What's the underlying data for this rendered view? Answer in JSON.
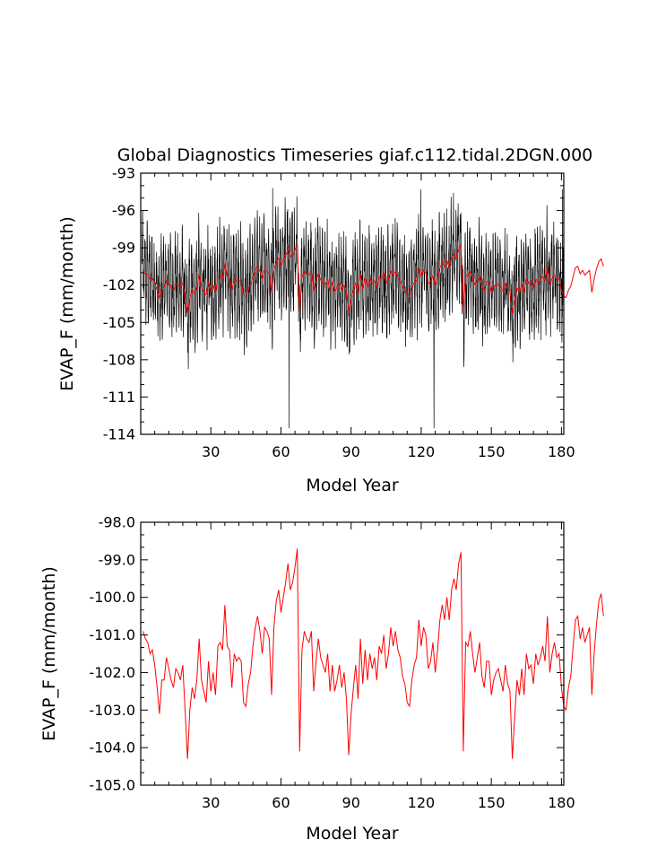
{
  "chart_data": [
    {
      "type": "line",
      "title": "Global Diagnostics Timeseries giaf.c112.tidal.2DGN.000",
      "xlabel": "Model Year",
      "ylabel": "EVAP_F (mm/month)",
      "xlim": [
        0,
        181
      ],
      "ylim": [
        -114,
        -93
      ],
      "xticks": [
        30,
        60,
        90,
        120,
        150,
        180
      ],
      "xtick_labels": [
        "30",
        "60",
        "90",
        "120",
        "150",
        "180"
      ],
      "yticks": [
        -93,
        -96,
        -99,
        -102,
        -105,
        -108,
        -111,
        -114
      ],
      "ytick_labels": [
        "-93",
        "-96",
        "-99",
        "-102",
        "-105",
        "-108",
        "-111",
        "-114"
      ],
      "grid": false,
      "colors": {
        "monthly": "#000000",
        "annual": "#ff0000"
      },
      "series": [
        {
          "id": "monthly",
          "resolution": "monthly",
          "amplitude": 3.8,
          "spikes": [
            {
              "x": 63.5,
              "y": -113.5
            },
            {
              "x": 125.5,
              "y": -113.5
            },
            {
              "x": 180.5,
              "y": -94.3
            },
            {
              "x": 56.5,
              "y": -94.2
            },
            {
              "x": 119.8,
              "y": -94.3
            }
          ]
        },
        {
          "id": "annual",
          "resolution": "annual"
        }
      ]
    },
    {
      "type": "line",
      "xlabel": "Model Year",
      "ylabel": "EVAP_F (mm/month)",
      "xlim": [
        0,
        181
      ],
      "ylim": [
        -105.0,
        -98.0
      ],
      "xticks": [
        30,
        60,
        90,
        120,
        150,
        180
      ],
      "xtick_labels": [
        "30",
        "60",
        "90",
        "120",
        "150",
        "180"
      ],
      "yticks": [
        -98.0,
        -99.0,
        -100.0,
        -101.0,
        -102.0,
        -103.0,
        -104.0,
        -105.0
      ],
      "ytick_labels": [
        "-98.0",
        "-99.0",
        "-100.0",
        "-101.0",
        "-102.0",
        "-103.0",
        "-104.0",
        "-105.0"
      ],
      "grid": false,
      "colors": {
        "line": "#ff0000"
      },
      "series": [
        {
          "id": "annual",
          "x_start": 1,
          "x_step": 1,
          "values": [
            -100.9,
            -101.1,
            -101.2,
            -101.5,
            -101.4,
            -101.8,
            -102.4,
            -103.1,
            -102.2,
            -102.2,
            -101.6,
            -101.9,
            -102.2,
            -102.4,
            -101.9,
            -102.0,
            -102.2,
            -101.8,
            -103.0,
            -104.3,
            -103.0,
            -102.4,
            -102.7,
            -102.2,
            -101.1,
            -102.2,
            -102.5,
            -102.8,
            -101.7,
            -102.5,
            -102.0,
            -102.6,
            -101.3,
            -101.2,
            -101.4,
            -100.2,
            -101.3,
            -101.4,
            -102.4,
            -101.5,
            -101.7,
            -101.6,
            -101.7,
            -102.8,
            -102.9,
            -102.3,
            -102.0,
            -101.3,
            -100.8,
            -100.5,
            -100.9,
            -101.5,
            -100.8,
            -100.9,
            -101.1,
            -102.6,
            -100.8,
            -100.1,
            -99.8,
            -100.4,
            -100.0,
            -99.6,
            -99.1,
            -99.8,
            -99.6,
            -99.2,
            -98.7,
            -104.1,
            -101.4,
            -100.9,
            -101.1,
            -101.2,
            -100.9,
            -102.5,
            -101.7,
            -101.1,
            -101.6,
            -101.8,
            -102.0,
            -101.5,
            -102.5,
            -101.8,
            -102.5,
            -102.2,
            -101.8,
            -102.4,
            -102.0,
            -102.7,
            -104.2,
            -103.1,
            -102.4,
            -101.8,
            -102.7,
            -101.1,
            -102.3,
            -101.4,
            -102.2,
            -101.5,
            -101.9,
            -101.6,
            -102.2,
            -101.3,
            -101.5,
            -101.0,
            -101.9,
            -101.5,
            -100.8,
            -101.3,
            -100.9,
            -101.4,
            -101.6,
            -102.1,
            -102.3,
            -102.8,
            -102.9,
            -102.2,
            -101.8,
            -101.6,
            -100.6,
            -101.3,
            -100.8,
            -101.0,
            -101.9,
            -101.7,
            -101.2,
            -102.0,
            -101.4,
            -100.6,
            -100.2,
            -100.6,
            -100.0,
            -100.6,
            -99.8,
            -99.5,
            -99.8,
            -99.1,
            -98.8,
            -104.1,
            -101.2,
            -101.3,
            -100.9,
            -101.5,
            -102.0,
            -101.6,
            -101.2,
            -102.1,
            -102.4,
            -101.7,
            -101.7,
            -102.6,
            -102.2,
            -102.0,
            -101.9,
            -102.2,
            -102.5,
            -101.8,
            -102.3,
            -102.5,
            -104.3,
            -103.2,
            -102.2,
            -102.6,
            -101.9,
            -102.6,
            -101.5,
            -101.9,
            -101.8,
            -102.3,
            -101.5,
            -101.8,
            -101.6,
            -101.3,
            -101.7,
            -100.5,
            -102.0,
            -101.5,
            -101.2,
            -101.6,
            -101.5,
            -102.4,
            -102.9,
            -103.0,
            -102.4,
            -102.1,
            -101.3,
            -100.6,
            -100.5,
            -101.1,
            -100.8,
            -101.2,
            -101.0,
            -100.8,
            -102.6,
            -101.5,
            -100.7,
            -100.1,
            -99.9,
            -100.5
          ]
        }
      ]
    }
  ]
}
